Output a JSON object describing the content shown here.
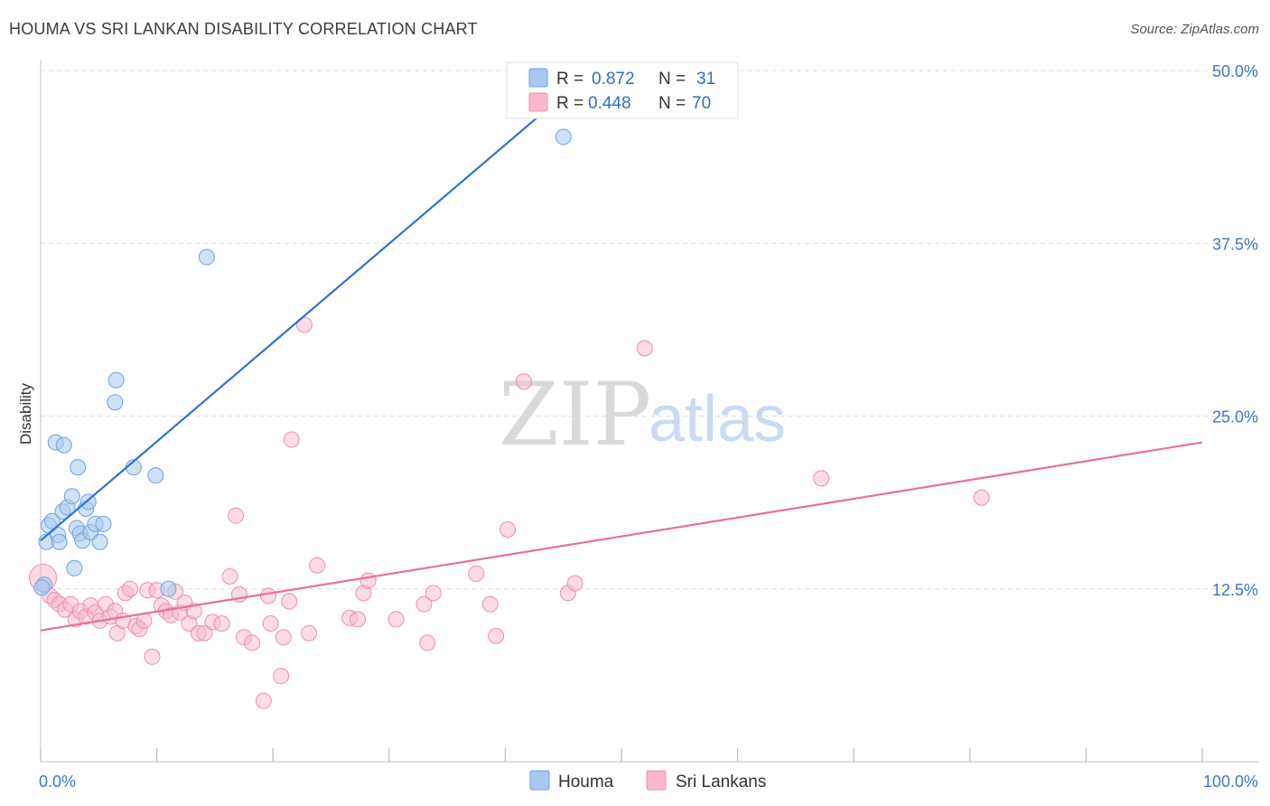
{
  "title": "HOUMA VS SRI LANKAN DISABILITY CORRELATION CHART",
  "source": "Source: ZipAtlas.com",
  "watermark": {
    "zip": "ZIP",
    "atlas": "atlas"
  },
  "colors": {
    "houma": "#a8c8f0",
    "houma_stroke": "#6fa2e0",
    "houma_line": "#2f72d4",
    "srilankan": "#f7b8cc",
    "srilankan_stroke": "#ec8fb0",
    "srilankan_line": "#e8709a",
    "tick_label": "#3f76c8"
  },
  "legend_top": [
    {
      "r_label": "R =",
      "r_value": "0.872",
      "n_label": "N =",
      "n_value": "31"
    },
    {
      "r_label": "R =",
      "r_value": "0.448",
      "n_label": "N =",
      "n_value": "70"
    }
  ],
  "legend_bottom": [
    "Houma",
    "Sri Lankans"
  ],
  "chart_data": {
    "type": "scatter",
    "title": "HOUMA VS SRI LANKAN DISABILITY CORRELATION CHART",
    "xlabel": "",
    "ylabel": "Disability",
    "xlim": [
      0,
      100
    ],
    "ylim": [
      0,
      50
    ],
    "x_tick_labels": [
      "0.0%",
      "100.0%"
    ],
    "y_ticks": [
      12.5,
      25.0,
      37.5,
      50.0
    ],
    "y_tick_labels": [
      "12.5%",
      "25.0%",
      "37.5%",
      "50.0%"
    ],
    "grid": "horizontal dashed",
    "legend_position": "top-center",
    "series": [
      {
        "name": "Houma",
        "R": 0.872,
        "N": 31,
        "trend": [
          [
            0,
            16.0
          ],
          [
            47.5,
            50.0
          ]
        ],
        "points": [
          [
            0.3,
            12.8
          ],
          [
            0.5,
            15.9
          ],
          [
            0.7,
            17.1
          ],
          [
            1.0,
            17.4
          ],
          [
            1.3,
            23.1
          ],
          [
            1.5,
            16.4
          ],
          [
            1.6,
            15.9
          ],
          [
            1.9,
            18.1
          ],
          [
            2.0,
            22.9
          ],
          [
            2.3,
            18.4
          ],
          [
            2.7,
            19.2
          ],
          [
            2.9,
            14.0
          ],
          [
            3.1,
            16.9
          ],
          [
            3.2,
            21.3
          ],
          [
            3.4,
            16.5
          ],
          [
            3.6,
            16.0
          ],
          [
            3.9,
            18.3
          ],
          [
            4.1,
            18.8
          ],
          [
            4.3,
            16.6
          ],
          [
            4.7,
            17.2
          ],
          [
            5.1,
            15.9
          ],
          [
            5.4,
            17.2
          ],
          [
            6.4,
            26.0
          ],
          [
            6.5,
            27.6
          ],
          [
            8.0,
            21.3
          ],
          [
            9.9,
            20.7
          ],
          [
            11.0,
            12.5
          ],
          [
            14.3,
            36.5
          ],
          [
            40.8,
            47.1
          ],
          [
            45.0,
            45.2
          ],
          [
            0.1,
            12.6
          ]
        ]
      },
      {
        "name": "Sri Lankans",
        "R": 0.448,
        "N": 70,
        "trend": [
          [
            0,
            9.5
          ],
          [
            100,
            23.1
          ]
        ],
        "points": [
          [
            0.2,
            13.3
          ],
          [
            0.8,
            12.0
          ],
          [
            1.2,
            11.7
          ],
          [
            1.6,
            11.4
          ],
          [
            2.1,
            11.0
          ],
          [
            2.6,
            11.4
          ],
          [
            3.0,
            10.3
          ],
          [
            3.4,
            10.9
          ],
          [
            3.9,
            10.5
          ],
          [
            4.3,
            11.3
          ],
          [
            4.7,
            10.8
          ],
          [
            5.1,
            10.2
          ],
          [
            5.6,
            11.4
          ],
          [
            6.0,
            10.5
          ],
          [
            6.4,
            10.9
          ],
          [
            6.6,
            9.3
          ],
          [
            7.1,
            10.2
          ],
          [
            7.3,
            12.2
          ],
          [
            7.7,
            12.5
          ],
          [
            8.2,
            9.8
          ],
          [
            8.5,
            9.6
          ],
          [
            8.9,
            10.2
          ],
          [
            9.2,
            12.4
          ],
          [
            9.6,
            7.6
          ],
          [
            10.0,
            12.4
          ],
          [
            10.4,
            11.3
          ],
          [
            10.8,
            10.9
          ],
          [
            11.2,
            10.6
          ],
          [
            11.6,
            12.3
          ],
          [
            12.0,
            10.8
          ],
          [
            12.4,
            11.5
          ],
          [
            12.8,
            10.0
          ],
          [
            13.2,
            10.9
          ],
          [
            13.6,
            9.3
          ],
          [
            14.1,
            9.3
          ],
          [
            14.8,
            10.1
          ],
          [
            15.6,
            10.0
          ],
          [
            16.3,
            13.4
          ],
          [
            16.8,
            17.8
          ],
          [
            17.1,
            12.1
          ],
          [
            17.5,
            9.0
          ],
          [
            18.2,
            8.6
          ],
          [
            19.2,
            4.4
          ],
          [
            19.6,
            12.0
          ],
          [
            19.8,
            10.0
          ],
          [
            20.7,
            6.2
          ],
          [
            20.9,
            9.0
          ],
          [
            21.4,
            11.6
          ],
          [
            21.6,
            23.3
          ],
          [
            22.7,
            31.6
          ],
          [
            23.1,
            9.3
          ],
          [
            23.8,
            14.2
          ],
          [
            26.6,
            10.4
          ],
          [
            27.3,
            10.3
          ],
          [
            27.8,
            12.2
          ],
          [
            28.2,
            13.1
          ],
          [
            30.6,
            10.3
          ],
          [
            33.0,
            11.4
          ],
          [
            33.3,
            8.6
          ],
          [
            33.8,
            12.2
          ],
          [
            37.5,
            13.6
          ],
          [
            38.7,
            11.4
          ],
          [
            39.2,
            9.1
          ],
          [
            40.2,
            16.8
          ],
          [
            41.6,
            27.5
          ],
          [
            45.4,
            12.2
          ],
          [
            46.0,
            12.9
          ],
          [
            52.0,
            29.9
          ],
          [
            67.2,
            20.5
          ],
          [
            81.0,
            19.1
          ]
        ]
      }
    ]
  }
}
